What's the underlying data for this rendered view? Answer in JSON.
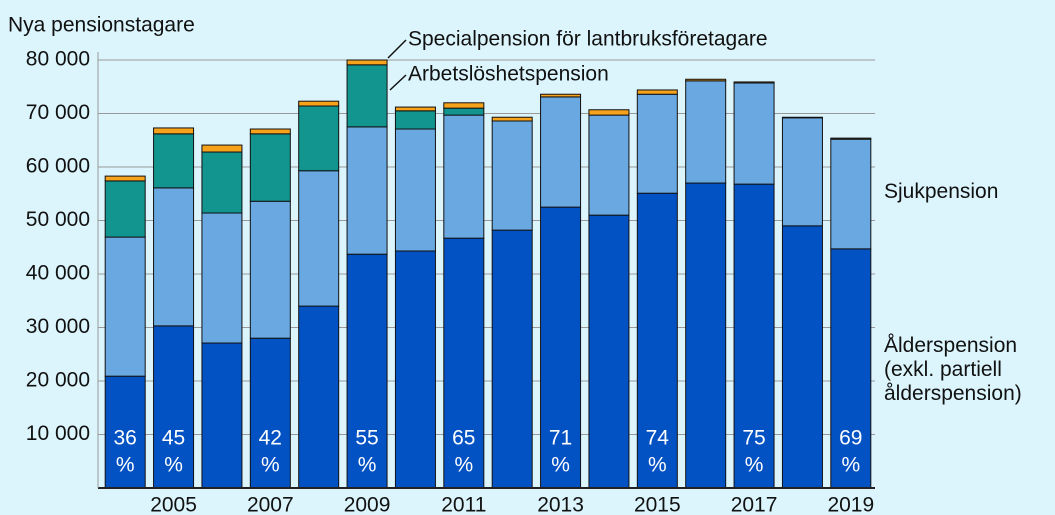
{
  "chart_data": {
    "type": "stacked_bar",
    "y_axis_label": "Nya pensionstagare",
    "categories": [
      null,
      "2005",
      null,
      "2007",
      null,
      "2009",
      null,
      "2011",
      null,
      "2013",
      null,
      "2015",
      null,
      "2017",
      null,
      "2019"
    ],
    "series": [
      {
        "name": "Ålderspension (exkl. partiell ålderspension)",
        "color": "#0352c4",
        "values": [
          20900,
          30300,
          27100,
          28000,
          34000,
          43700,
          44300,
          46700,
          48200,
          52500,
          51000,
          55100,
          57000,
          56800,
          49000,
          44700
        ]
      },
      {
        "name": "Sjukpension",
        "color": "#69a8e0",
        "values": [
          26000,
          25800,
          24300,
          25600,
          25300,
          23800,
          22800,
          23000,
          20400,
          20600,
          18700,
          18500,
          19100,
          18900,
          20200,
          20500
        ]
      },
      {
        "name": "Arbetslöshetspension",
        "color": "#12958f",
        "values": [
          10500,
          10100,
          11400,
          12600,
          12100,
          11600,
          3400,
          1300,
          0,
          0,
          0,
          0,
          0,
          0,
          0,
          0
        ]
      },
      {
        "name": "Specialpension för lantbruksföretagare",
        "color": "#f7a21b",
        "values": [
          900,
          1100,
          1300,
          900,
          900,
          900,
          700,
          1000,
          700,
          500,
          1000,
          800,
          300,
          200,
          100,
          200
        ]
      }
    ],
    "share_labels": [
      "36",
      "45",
      null,
      "42",
      null,
      "55",
      null,
      "65",
      null,
      "71",
      null,
      "74",
      null,
      "75",
      null,
      "69"
    ],
    "share_unit": "%",
    "ylim": [
      0,
      80000
    ],
    "yticks": [
      {
        "value": 10000,
        "label": "10 000"
      },
      {
        "value": 20000,
        "label": "20 000"
      },
      {
        "value": 30000,
        "label": "30 000"
      },
      {
        "value": 40000,
        "label": "40 000"
      },
      {
        "value": 50000,
        "label": "50 000"
      },
      {
        "value": 60000,
        "label": "60 000"
      },
      {
        "value": 70000,
        "label": "70 000"
      },
      {
        "value": 80000,
        "label": "80 000"
      }
    ],
    "grid": true
  }
}
